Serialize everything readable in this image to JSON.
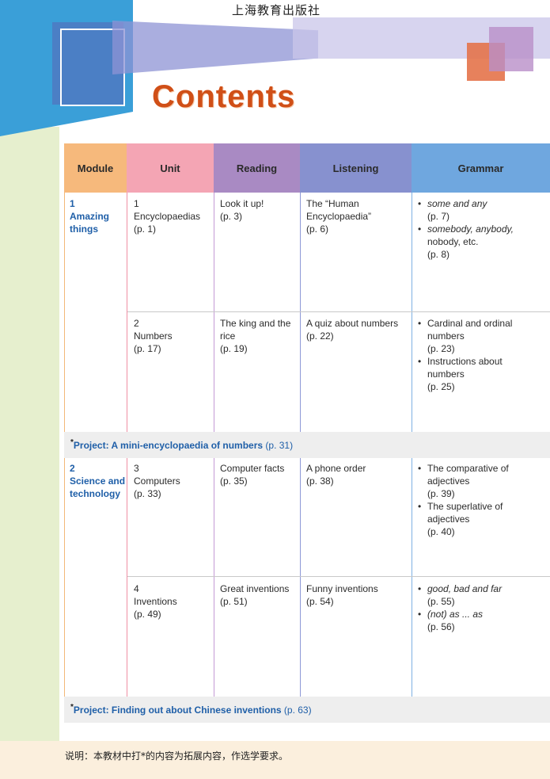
{
  "publisher": "上海教育出版社",
  "title": "Contents",
  "headers": {
    "module": "Module",
    "unit": "Unit",
    "reading": "Reading",
    "listening": "Listening",
    "grammar": "Grammar"
  },
  "header_colors": {
    "module": "#f6b97c",
    "unit": "#f4a5b4",
    "reading": "#a98ac3",
    "listening": "#8791cf",
    "grammar": "#6fa7df"
  },
  "modules": [
    {
      "number": "1",
      "name_line1": "Amazing",
      "name_line2": "things",
      "units": [
        {
          "number": "1",
          "name": "Encyclopaedias",
          "page": "(p. 1)",
          "reading": {
            "line1": "Look it up!",
            "line2": "",
            "page": "(p. 3)"
          },
          "listening": {
            "line1": "The “Human",
            "line2": "Encyclopaedia”",
            "page": "(p. 6)"
          },
          "grammar": [
            {
              "line1": "some and any",
              "line2": "",
              "page": "(p. 7)"
            },
            {
              "line1": "somebody, anybody,",
              "line2": "nobody, etc.",
              "page": "(p. 8)"
            }
          ]
        },
        {
          "number": "2",
          "name": "Numbers",
          "page": "(p. 17)",
          "reading": {
            "line1": "The king and the",
            "line2": "rice",
            "page": "(p. 19)"
          },
          "listening": {
            "line1": "A quiz about numbers",
            "line2": "",
            "page": "(p. 22)"
          },
          "grammar": [
            {
              "line1": "Cardinal and ordinal",
              "line2": "numbers",
              "page": "(p. 23)"
            },
            {
              "line1": "Instructions about",
              "line2": "numbers",
              "page": "(p. 25)"
            }
          ]
        }
      ],
      "project": {
        "star": "*",
        "label": "Project: A mini-encyclopaedia of numbers",
        "page": "(p. 31)"
      }
    },
    {
      "number": "2",
      "name_line1": "Science and",
      "name_line2": "technology",
      "units": [
        {
          "number": "3",
          "name": "Computers",
          "page": "(p. 33)",
          "reading": {
            "line1": "Computer facts",
            "line2": "",
            "page": "(p. 35)"
          },
          "listening": {
            "line1": "A phone order",
            "line2": "",
            "page": "(p. 38)"
          },
          "grammar": [
            {
              "line1": "The comparative of",
              "line2": "adjectives",
              "page": "(p. 39)"
            },
            {
              "line1": "The superlative of",
              "line2": "adjectives",
              "page": "(p. 40)"
            }
          ]
        },
        {
          "number": "4",
          "name": "Inventions",
          "page": "(p. 49)",
          "reading": {
            "line1": "Great inventions",
            "line2": "",
            "page": "(p. 51)"
          },
          "listening": {
            "line1": "Funny inventions",
            "line2": "",
            "page": "(p. 54)"
          },
          "grammar": [
            {
              "line1": "good, bad and far",
              "line2": "",
              "page": "(p. 55)"
            },
            {
              "line1": "(not) as ... as",
              "line2": "",
              "page": "(p. 56)"
            }
          ]
        }
      ],
      "project": {
        "star": "*",
        "label": "Project: Finding out about Chinese inventions",
        "page": "(p. 63)"
      }
    }
  ],
  "footer_note": "说明：本教材中打*的内容为拓展内容，作选学要求。"
}
